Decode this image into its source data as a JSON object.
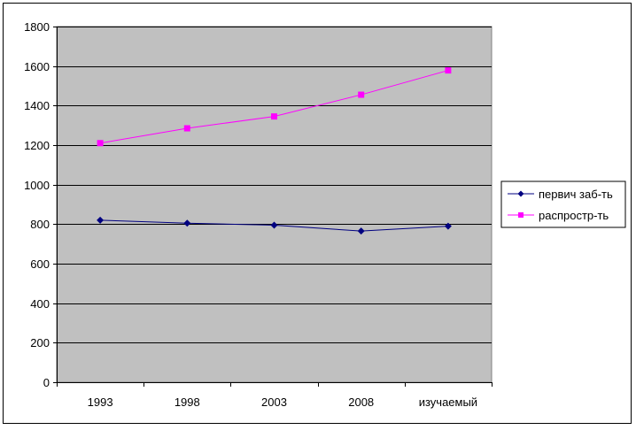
{
  "chart_data": {
    "type": "line",
    "categories": [
      "1993",
      "1998",
      "2003",
      "2008",
      "изучаемый"
    ],
    "series": [
      {
        "name": "первич заб-ть",
        "values": [
          820,
          805,
          795,
          765,
          790
        ],
        "color": "#000080",
        "marker": "diamond"
      },
      {
        "name": "распростр-ть",
        "values": [
          1210,
          1285,
          1345,
          1455,
          1578
        ],
        "color": "#FF00FF",
        "marker": "square"
      }
    ],
    "yticks": [
      "0",
      "200",
      "400",
      "600",
      "800",
      "1000",
      "1200",
      "1400",
      "1600",
      "1800"
    ],
    "ylim": [
      0,
      1800
    ],
    "plot_background": "#C0C0C0",
    "grid": true,
    "legend_position": "right"
  }
}
